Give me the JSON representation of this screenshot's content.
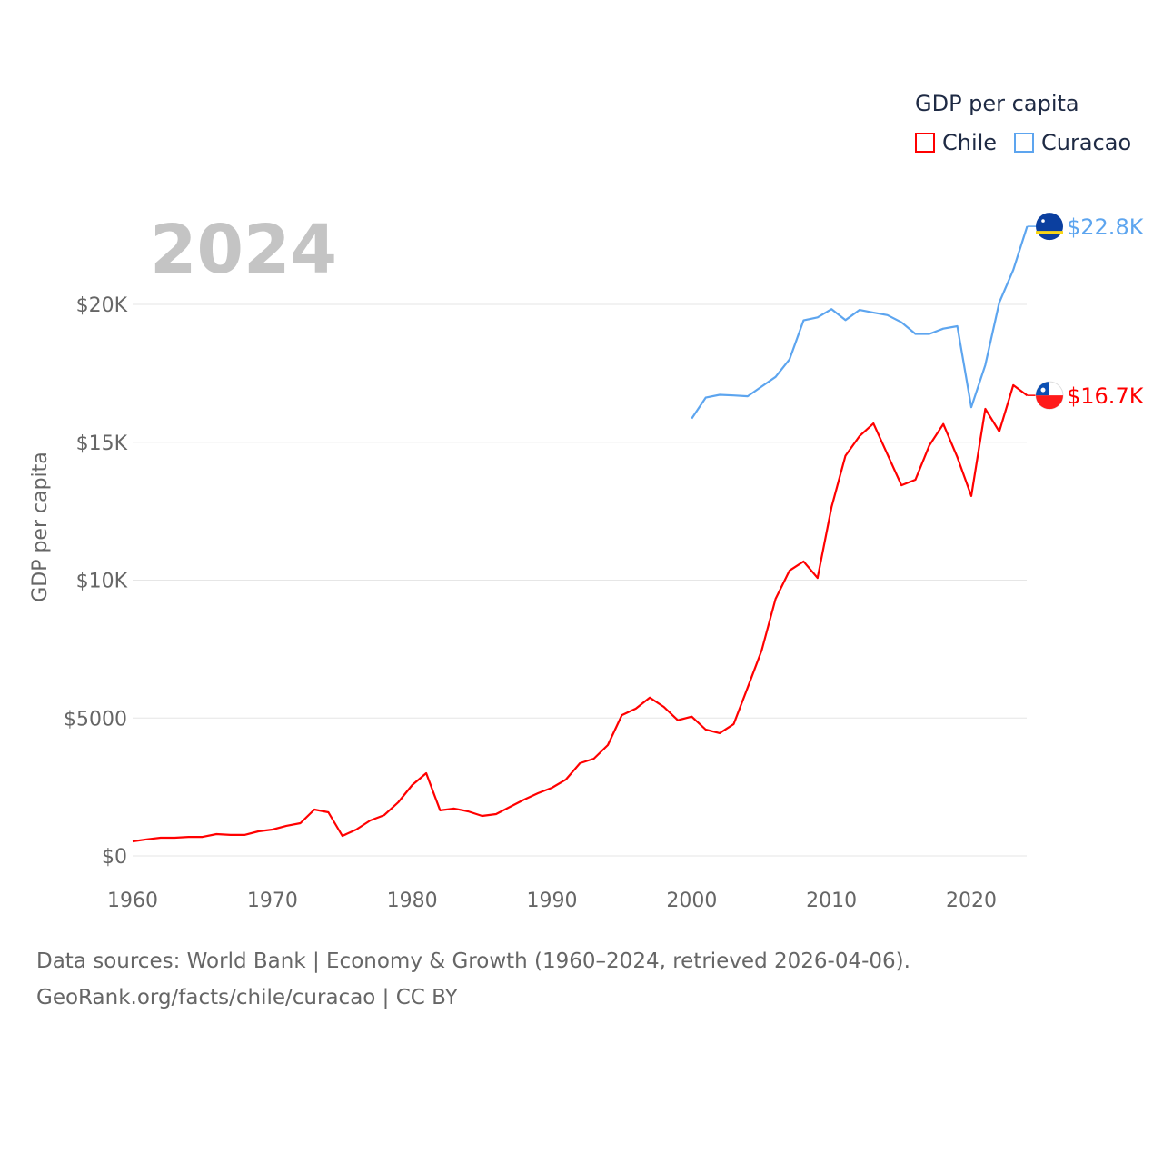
{
  "chart_data": {
    "type": "line",
    "title": "",
    "year_watermark": "2024",
    "ylabel": "GDP per capita",
    "xlabel": "",
    "xlim": [
      1960,
      2024
    ],
    "ylim": [
      0,
      22800
    ],
    "x_ticks": [
      1960,
      1970,
      1980,
      1990,
      2000,
      2010,
      2020
    ],
    "y_ticks": [
      {
        "v": 0,
        "label": "$0"
      },
      {
        "v": 5000,
        "label": "$5000"
      },
      {
        "v": 10000,
        "label": "$10K"
      },
      {
        "v": 15000,
        "label": "$15K"
      },
      {
        "v": 20000,
        "label": "$20K"
      }
    ],
    "grid": true,
    "legend": {
      "title": "GDP per capita",
      "placement": "top-right"
    },
    "series": [
      {
        "name": "Chile",
        "color": "#ff0000",
        "end_label": "$16.7K",
        "start_year": 1960,
        "values": [
          527,
          600,
          660,
          660,
          690,
          690,
          790,
          760,
          760,
          890,
          955,
          1090,
          1185,
          1680,
          1580,
          725,
          955,
          1285,
          1480,
          1945,
          2570,
          3000,
          1650,
          1715,
          1615,
          1450,
          1515,
          1780,
          2040,
          2275,
          2470,
          2770,
          3360,
          3525,
          4020,
          5105,
          5340,
          5740,
          5405,
          4920,
          5050,
          4580,
          4450,
          4780,
          6105,
          7450,
          9320,
          10350,
          10680,
          10080,
          12650,
          14510,
          15220,
          15680,
          14560,
          13440,
          13640,
          14890,
          15660,
          14460,
          13050,
          16210,
          15390,
          17070,
          16700
        ]
      },
      {
        "name": "Curacao",
        "color": "#5da5ef",
        "end_label": "$22.8K",
        "start_year": 2000,
        "values": [
          15860,
          16620,
          16720,
          16700,
          16670,
          17020,
          17370,
          18010,
          19420,
          19530,
          19830,
          19430,
          19800,
          19700,
          19610,
          19350,
          18930,
          18930,
          19120,
          19210,
          16270,
          17800,
          20070,
          21250,
          22830
        ]
      }
    ]
  },
  "footer": {
    "line1": "Data sources: World Bank | Economy & Growth (1960–2024, retrieved 2026-04-06).",
    "line2": "GeoRank.org/facts/chile/curacao | CC BY"
  }
}
